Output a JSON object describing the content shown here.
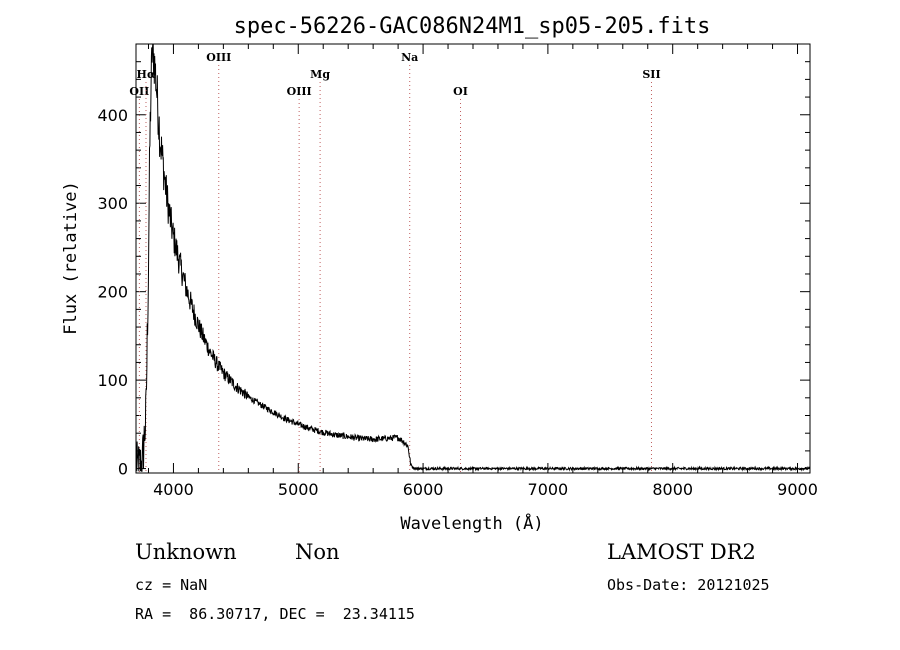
{
  "chart_data": {
    "type": "line",
    "title": "spec-56226-GAC086N24M1_sp05-205.fits",
    "xlabel": "Wavelength (Å)",
    "ylabel": "Flux (relative)",
    "xlim": [
      3700,
      9100
    ],
    "ylim": [
      -5,
      480
    ],
    "xticks": [
      4000,
      5000,
      6000,
      7000,
      8000,
      9000
    ],
    "yticks": [
      0,
      100,
      200,
      300,
      400
    ],
    "grid": false,
    "series": [
      {
        "x": [
          3700,
          3750,
          3780,
          3800,
          3810,
          3820,
          3830,
          3840,
          3850,
          3860,
          3870,
          3880,
          3890,
          3900,
          3920,
          3940,
          3960,
          3980,
          4000,
          4050,
          4100,
          4150,
          4200,
          4250,
          4300,
          4350,
          4400,
          4500,
          4600,
          4700,
          4800,
          4900,
          5000,
          5100,
          5200,
          5300,
          5400,
          5500,
          5600,
          5700,
          5800,
          5850,
          5880,
          5900,
          5920,
          5950,
          6000,
          6500,
          7000,
          7500,
          8000,
          8500,
          9000,
          9100
        ],
        "y": [
          0,
          5,
          60,
          230,
          360,
          430,
          475,
          470,
          455,
          440,
          420,
          400,
          380,
          365,
          340,
          315,
          295,
          278,
          262,
          232,
          205,
          182,
          162,
          145,
          130,
          118,
          108,
          93,
          81,
          72,
          64,
          56,
          50,
          45,
          41,
          38,
          36,
          34,
          33,
          34,
          35,
          30,
          25,
          5,
          1,
          0,
          0,
          0,
          0,
          0,
          0,
          0,
          0,
          0
        ]
      }
    ],
    "lines": [
      {
        "label": "OII",
        "x": 3727,
        "row": 3
      },
      {
        "label": "Hα",
        "x": 3780,
        "row": 2
      },
      {
        "label": "OIII",
        "x": 4363,
        "row": 1
      },
      {
        "label": "OIII",
        "x": 5007,
        "row": 3
      },
      {
        "label": "Mg",
        "x": 5175,
        "row": 2
      },
      {
        "label": "Na",
        "x": 5893,
        "row": 1
      },
      {
        "label": "OI",
        "x": 6300,
        "row": 3
      },
      {
        "label": "SII",
        "x": 7830,
        "row": 2
      }
    ]
  },
  "info": {
    "class": "Unknown",
    "subclass": "Non",
    "survey": "LAMOST DR2",
    "cz": "cz = NaN",
    "obs_date": "Obs-Date: 20121025",
    "coords": "RA =  86.30717, DEC =  23.34115"
  }
}
